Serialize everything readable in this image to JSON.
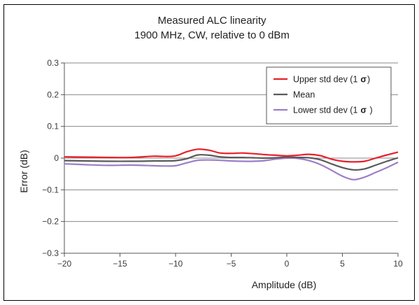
{
  "chart_data": {
    "type": "line",
    "title": "Measured ALC linearity",
    "subtitle": "1900 MHz, CW, relative to 0 dBm",
    "xlabel": "Amplitude (dB)",
    "ylabel": "Error (dB)",
    "xlim": [
      -20,
      10
    ],
    "ylim": [
      -0.3,
      0.3
    ],
    "xticks": [
      "−20",
      "−15",
      "−10",
      "−5",
      "0",
      "5",
      "10"
    ],
    "xtick_values": [
      -20,
      -15,
      -10,
      -5,
      0,
      5,
      10
    ],
    "yticks": [
      "0.3",
      "0.2",
      "0.1",
      "0",
      "−0.1",
      "−0.2",
      "−0.3"
    ],
    "ytick_values": [
      0.3,
      0.2,
      0.1,
      0,
      -0.1,
      -0.2,
      -0.3
    ],
    "grid": "horizontal",
    "legend_position": "top-right",
    "x": [
      -20,
      -18,
      -16,
      -14,
      -12,
      -11,
      -10,
      -9,
      -8,
      -7,
      -6,
      -5,
      -4,
      -3,
      -2,
      -1,
      0,
      1,
      2,
      3,
      4,
      5,
      6,
      7,
      8,
      9,
      10
    ],
    "series": [
      {
        "name": "Upper std dev (1 σ)",
        "legend_label": "Upper std dev (1",
        "legend_symbol": "σ",
        "legend_close": ")",
        "color": "#e8202a",
        "values": [
          0.004,
          0.003,
          0.002,
          0.002,
          0.006,
          0.005,
          0.007,
          0.02,
          0.028,
          0.025,
          0.016,
          0.015,
          0.016,
          0.014,
          0.011,
          0.009,
          0.007,
          0.009,
          0.012,
          0.008,
          -0.003,
          -0.01,
          -0.012,
          -0.01,
          0.0,
          0.01,
          0.019
        ]
      },
      {
        "name": "Mean",
        "legend_label": "Mean",
        "legend_symbol": "",
        "legend_close": "",
        "color": "#5a5a5a",
        "values": [
          -0.008,
          -0.009,
          -0.01,
          -0.01,
          -0.009,
          -0.009,
          -0.008,
          -0.002,
          0.01,
          0.009,
          0.004,
          0.002,
          0.002,
          0.001,
          0.0,
          0.001,
          0.003,
          0.002,
          0.001,
          -0.005,
          -0.018,
          -0.03,
          -0.037,
          -0.034,
          -0.022,
          -0.01,
          0.001
        ]
      },
      {
        "name": "Lower std dev (1 σ )",
        "legend_label": "Lower std dev (1",
        "legend_symbol": "σ",
        "legend_close": " )",
        "color": "#9b7fc7",
        "values": [
          -0.018,
          -0.021,
          -0.023,
          -0.022,
          -0.024,
          -0.025,
          -0.024,
          -0.015,
          -0.007,
          -0.006,
          -0.007,
          -0.009,
          -0.01,
          -0.01,
          -0.008,
          -0.003,
          0.0,
          -0.001,
          -0.008,
          -0.02,
          -0.038,
          -0.057,
          -0.068,
          -0.06,
          -0.045,
          -0.03,
          -0.013
        ]
      }
    ]
  }
}
